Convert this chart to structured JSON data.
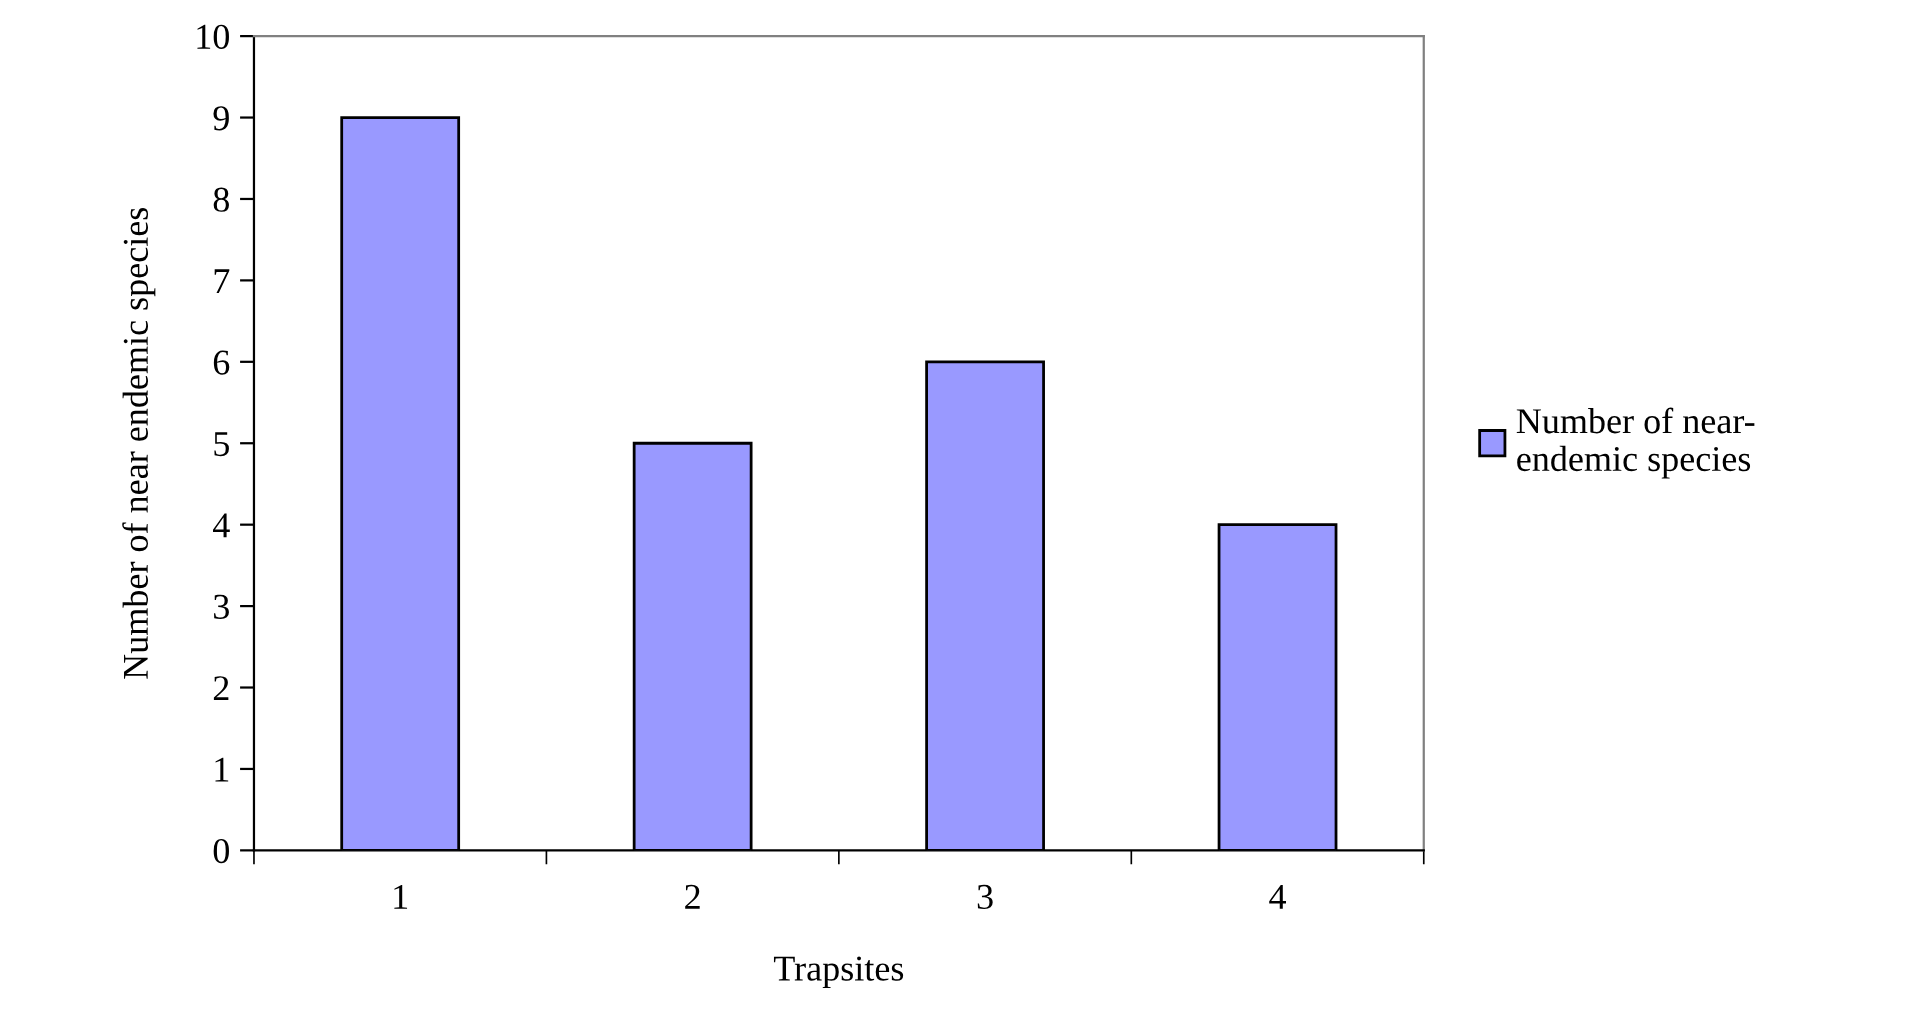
{
  "chart_data": {
    "type": "bar",
    "xlabel": "Trapsites",
    "ylabel": "Number of near endemic species",
    "categories": [
      "1",
      "2",
      "3",
      "4"
    ],
    "series": [
      {
        "name": "Number of near-endemic species",
        "color": "#9999ff",
        "values": [
          9,
          5,
          6,
          4
        ]
      }
    ],
    "ylim": [
      0,
      10
    ],
    "yticks": [
      0,
      1,
      2,
      3,
      4,
      5,
      6,
      7,
      8,
      9,
      10
    ],
    "grid": false,
    "legend": "right"
  }
}
